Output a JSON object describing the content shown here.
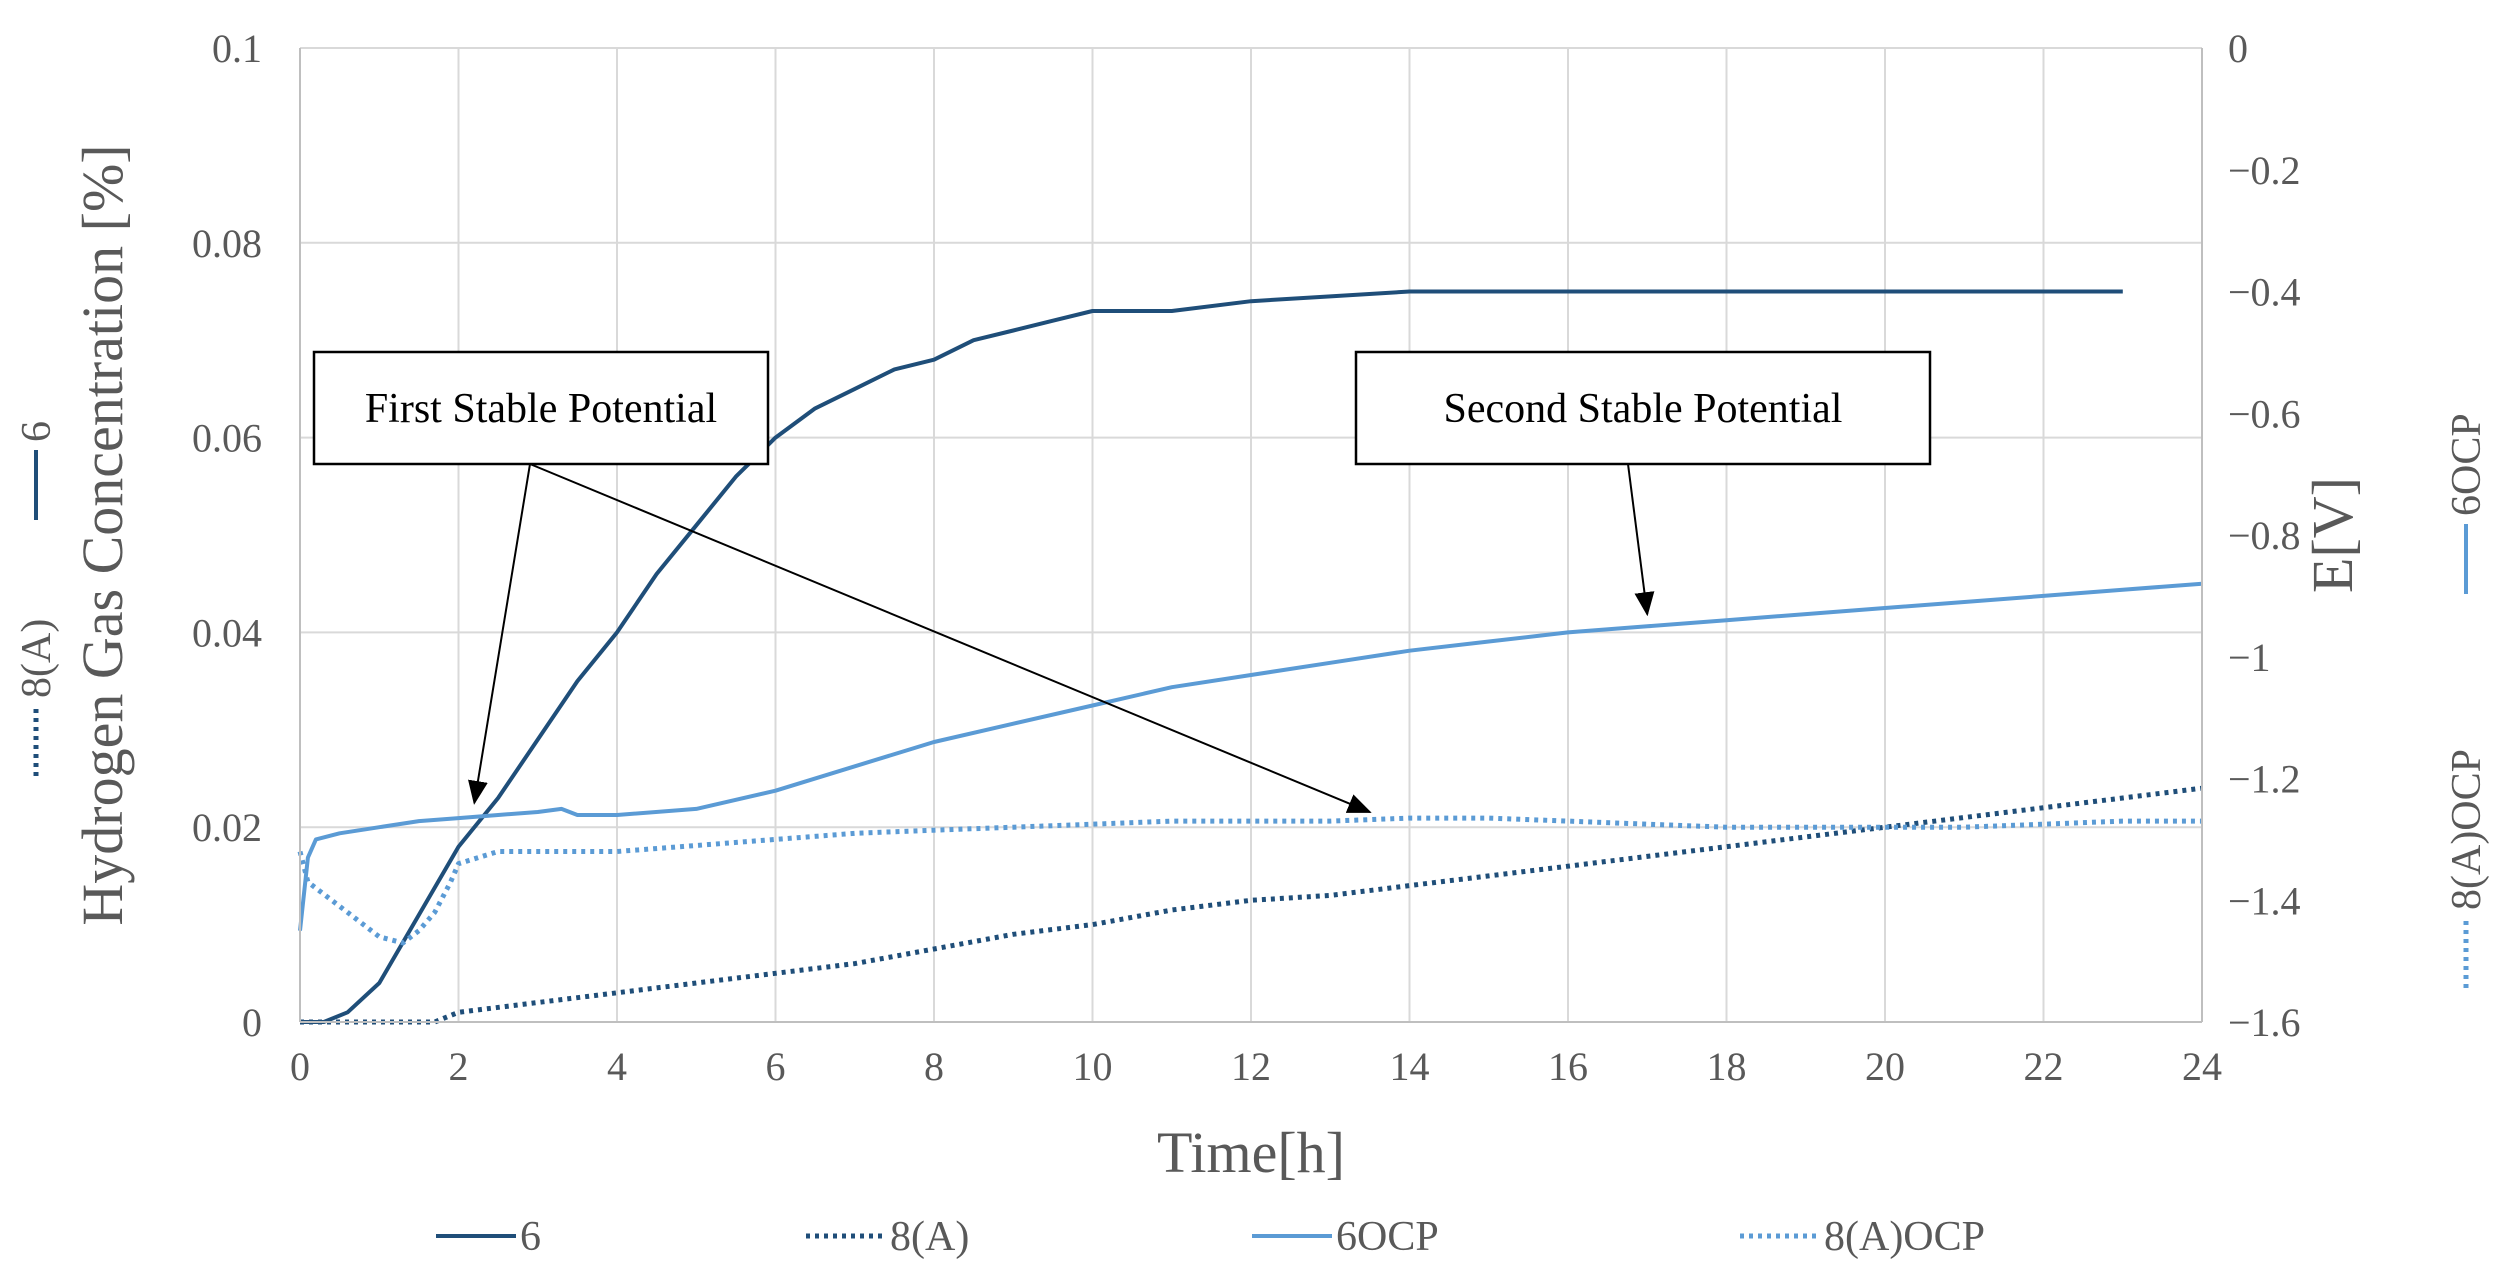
{
  "chart_data": {
    "type": "line",
    "title": "",
    "xlabel": "Time[h]",
    "ylabel_left": "Hydrogen Gas Concentration [%]",
    "ylabel_right": "E[V]",
    "xlim": [
      0,
      24
    ],
    "xticks": [
      0,
      2,
      4,
      6,
      8,
      10,
      12,
      14,
      16,
      18,
      20,
      22,
      24
    ],
    "ylim_left": [
      0,
      0.1
    ],
    "yticks_left": [
      0,
      0.02,
      0.04,
      0.06,
      0.08,
      0.1
    ],
    "ytick_labels_left": [
      "0",
      "0.02",
      "0.04",
      "0.06",
      "0.08",
      "0.1"
    ],
    "ylim_right": [
      -1.6,
      0
    ],
    "yticks_right": [
      -1.6,
      -1.4,
      -1.2,
      -1.0,
      -0.8,
      -0.6,
      -0.4,
      -0.2,
      0
    ],
    "ytick_labels_right": [
      "−1.6",
      "−1.4",
      "−1.2",
      "−1",
      "−0.8",
      "−0.6",
      "−0.4",
      "−0.2",
      "0"
    ],
    "grid": true,
    "legend_position": "bottom",
    "series": [
      {
        "name": "6",
        "axis": "left",
        "style": "solid",
        "color": "#1f4e79",
        "x": [
          0,
          0.3,
          0.6,
          1,
          1.5,
          2,
          2.5,
          3,
          3.5,
          4,
          4.5,
          5,
          5.5,
          6,
          6.5,
          7,
          7.5,
          8,
          8.5,
          9,
          9.5,
          10,
          11,
          12,
          13,
          14,
          16,
          18,
          20,
          21,
          23
        ],
        "y": [
          0,
          0,
          0.001,
          0.004,
          0.011,
          0.018,
          0.023,
          0.029,
          0.035,
          0.04,
          0.046,
          0.051,
          0.056,
          0.06,
          0.063,
          0.065,
          0.067,
          0.068,
          0.07,
          0.071,
          0.072,
          0.073,
          0.073,
          0.074,
          0.0745,
          0.075,
          0.075,
          0.075,
          0.075,
          0.075,
          0.075
        ]
      },
      {
        "name": "8(A)",
        "axis": "left",
        "style": "dotted",
        "color": "#1f4e79",
        "x": [
          0,
          1,
          1.7,
          2,
          3,
          4,
          5,
          6,
          7,
          8,
          9,
          10,
          11,
          12,
          13,
          14,
          15,
          16,
          17,
          18,
          19,
          20,
          21,
          22,
          23,
          24
        ],
        "y": [
          0,
          0,
          0,
          0.001,
          0.002,
          0.003,
          0.004,
          0.005,
          0.006,
          0.0075,
          0.009,
          0.01,
          0.0115,
          0.0125,
          0.013,
          0.014,
          0.015,
          0.016,
          0.017,
          0.018,
          0.019,
          0.02,
          0.021,
          0.022,
          0.023,
          0.024
        ]
      },
      {
        "name": "6OCP",
        "axis": "right",
        "style": "solid",
        "color": "#5b9bd5",
        "x": [
          0,
          0.1,
          0.2,
          0.5,
          1,
          1.5,
          2,
          2.5,
          3,
          3.3,
          3.5,
          4,
          5,
          6,
          7,
          8,
          9,
          10,
          11,
          12,
          13,
          14,
          15,
          16,
          17,
          18,
          19,
          20,
          21,
          22,
          23,
          24
        ],
        "y": [
          -1.45,
          -1.33,
          -1.3,
          -1.29,
          -1.28,
          -1.27,
          -1.265,
          -1.26,
          -1.255,
          -1.25,
          -1.26,
          -1.26,
          -1.25,
          -1.22,
          -1.18,
          -1.14,
          -1.11,
          -1.08,
          -1.05,
          -1.03,
          -1.01,
          -0.99,
          -0.975,
          -0.96,
          -0.95,
          -0.94,
          -0.93,
          -0.92,
          -0.91,
          -0.9,
          -0.89,
          -0.88
        ]
      },
      {
        "name": "8(A)OCP",
        "axis": "right",
        "style": "dotted",
        "color": "#5b9bd5",
        "x": [
          0,
          0.1,
          0.3,
          0.6,
          1,
          1.3,
          1.5,
          1.7,
          1.9,
          2,
          2.5,
          3,
          4,
          5,
          6,
          7,
          8,
          9,
          10,
          11,
          12,
          13,
          14,
          15,
          16,
          17,
          18,
          19,
          20,
          21,
          22,
          23,
          24
        ],
        "y": [
          -1.32,
          -1.37,
          -1.39,
          -1.42,
          -1.46,
          -1.47,
          -1.45,
          -1.42,
          -1.37,
          -1.34,
          -1.32,
          -1.32,
          -1.32,
          -1.31,
          -1.3,
          -1.29,
          -1.285,
          -1.28,
          -1.275,
          -1.27,
          -1.27,
          -1.27,
          -1.265,
          -1.265,
          -1.27,
          -1.275,
          -1.28,
          -1.28,
          -1.28,
          -1.28,
          -1.275,
          -1.27,
          -1.27
        ]
      }
    ],
    "annotations": [
      {
        "label": "First Stable Potential",
        "targets": [
          {
            "x": 2.2,
            "axis": "right",
            "y": -1.25
          },
          {
            "x": 13.5,
            "axis": "right",
            "y": -1.265
          }
        ]
      },
      {
        "label": "Second Stable Potential",
        "targets": [
          {
            "x": 17,
            "axis": "right",
            "y": -0.94
          }
        ]
      }
    ]
  }
}
